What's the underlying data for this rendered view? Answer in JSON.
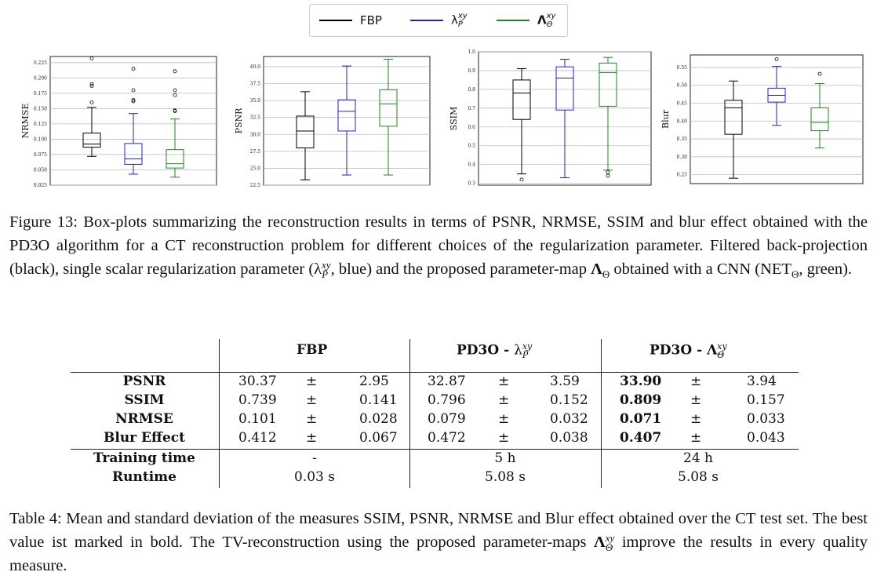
{
  "legend": {
    "items": [
      {
        "label": "FBP",
        "sup": "",
        "sub": "",
        "color": "#000000"
      },
      {
        "label": "λ",
        "sup": "xy",
        "sub": "P̃",
        "color": "#1f1fdd"
      },
      {
        "label": "Λ",
        "sup": "xy",
        "sub": "Θ",
        "color": "#1a8a1a"
      }
    ]
  },
  "chart_data": [
    {
      "type": "box",
      "ylabel": "NRMSE",
      "ylim": [
        0.025,
        0.235
      ],
      "yticks": [
        "0.025",
        "0.050",
        "0.075",
        "0.100",
        "0.125",
        "0.150",
        "0.175",
        "0.200",
        "0.225"
      ],
      "boxes": [
        {
          "color": "#000000",
          "whislo": 0.072,
          "q1": 0.087,
          "med": 0.092,
          "q3": 0.11,
          "whishi": 0.152,
          "fliers": [
            0.16,
            0.187,
            0.19,
            0.232
          ]
        },
        {
          "color": "#1f1fdd",
          "whislo": 0.043,
          "q1": 0.059,
          "med": 0.068,
          "q3": 0.093,
          "whishi": 0.142,
          "fliers": [
            0.162,
            0.164,
            0.18,
            0.215
          ]
        },
        {
          "color": "#1a8a1a",
          "whislo": 0.038,
          "q1": 0.053,
          "med": 0.06,
          "q3": 0.083,
          "whishi": 0.133,
          "fliers": [
            0.146,
            0.147,
            0.172,
            0.18,
            0.211
          ]
        }
      ]
    },
    {
      "type": "box",
      "ylabel": "PSNR",
      "ylim": [
        22.5,
        41.5
      ],
      "yticks": [
        "22.5",
        "25.0",
        "27.5",
        "30.0",
        "32.5",
        "35.0",
        "37.5",
        "40.0"
      ],
      "boxes": [
        {
          "color": "#000000",
          "whislo": 23.3,
          "q1": 28.0,
          "med": 30.5,
          "q3": 32.7,
          "whishi": 36.3,
          "fliers": []
        },
        {
          "color": "#1f1fdd",
          "whislo": 24.0,
          "q1": 30.5,
          "med": 33.4,
          "q3": 35.1,
          "whishi": 40.1,
          "fliers": []
        },
        {
          "color": "#1a8a1a",
          "whislo": 24.0,
          "q1": 31.2,
          "med": 34.5,
          "q3": 36.6,
          "whishi": 41.1,
          "fliers": []
        }
      ]
    },
    {
      "type": "box",
      "ylabel": "SSIM",
      "ylim": [
        0.29,
        1.0
      ],
      "yticks": [
        "0.3",
        "0.4",
        "0.5",
        "0.6",
        "0.7",
        "0.8",
        "0.9",
        "1.0"
      ],
      "boxes": [
        {
          "color": "#000000",
          "whislo": 0.35,
          "q1": 0.64,
          "med": 0.78,
          "q3": 0.85,
          "whishi": 0.91,
          "fliers": [
            0.32
          ]
        },
        {
          "color": "#1f1fdd",
          "whislo": 0.33,
          "q1": 0.69,
          "med": 0.86,
          "q3": 0.92,
          "whishi": 0.96,
          "fliers": []
        },
        {
          "color": "#1a8a1a",
          "whislo": 0.37,
          "q1": 0.71,
          "med": 0.89,
          "q3": 0.94,
          "whishi": 0.97,
          "fliers": [
            0.34,
            0.36
          ]
        }
      ]
    },
    {
      "type": "box",
      "ylabel": "Blur",
      "ylim": [
        0.225,
        0.585
      ],
      "yticks": [
        "0.25",
        "0.30",
        "0.35",
        "0.40",
        "0.45",
        "0.50",
        "0.55"
      ],
      "boxes": [
        {
          "color": "#000000",
          "whislo": 0.24,
          "q1": 0.363,
          "med": 0.437,
          "q3": 0.458,
          "whishi": 0.512,
          "fliers": []
        },
        {
          "color": "#1f1fdd",
          "whislo": 0.388,
          "q1": 0.453,
          "med": 0.472,
          "q3": 0.492,
          "whishi": 0.553,
          "fliers": [
            0.573
          ]
        },
        {
          "color": "#1a8a1a",
          "whislo": 0.325,
          "q1": 0.373,
          "med": 0.396,
          "q3": 0.437,
          "whishi": 0.505,
          "fliers": [
            0.532
          ]
        }
      ]
    }
  ],
  "figure_caption": {
    "label": "Figure 13:",
    "text1": " Box-plots summarizing the reconstruction results in terms of PSNR, NRMSE, SSIM and blur effect obtained with the PD3O algorithm for a CT reconstruction problem for different choices of the regularization parameter. Filtered back-projection (black), single scalar regularization parameter (",
    "lambda": "λ",
    "lambda_sup": "xy",
    "lambda_sub": "P̃",
    "text2": ", blue) and the proposed parameter-map ",
    "Lambda": "Λ",
    "Lambda_sub": "Θ",
    "text3": " obtained with a CNN (NET",
    "net_sub": "Θ",
    "text4": ", green)."
  },
  "table": {
    "col_headers": [
      {
        "text": "FBP",
        "sym": "",
        "sup": "",
        "sub": ""
      },
      {
        "text": "PD3O - ",
        "sym": "λ",
        "sup": "xy",
        "sub": "P̃"
      },
      {
        "text": "PD3O - ",
        "sym": "Λ",
        "sup": "xy",
        "sub": "Θ"
      }
    ],
    "rows": [
      {
        "label": "PSNR",
        "vals": [
          "30.37",
          "±",
          "2.95",
          "32.87",
          "±",
          "3.59",
          "33.90",
          "±",
          "3.94"
        ]
      },
      {
        "label": "SSIM",
        "vals": [
          "0.739",
          "±",
          "0.141",
          "0.796",
          "±",
          "0.152",
          "0.809",
          "±",
          "0.157"
        ]
      },
      {
        "label": "NRMSE",
        "vals": [
          "0.101",
          "±",
          "0.028",
          "0.079",
          "±",
          "0.032",
          "0.071",
          "±",
          "0.033"
        ]
      },
      {
        "label": "Blur Effect",
        "vals": [
          "0.412",
          "±",
          "0.067",
          "0.472",
          "±",
          "0.038",
          "0.407",
          "±",
          "0.043"
        ]
      }
    ],
    "extra_rows": [
      {
        "label": "Training time",
        "vals": [
          "-",
          "5 h",
          "24 h"
        ]
      },
      {
        "label": "Runtime",
        "vals": [
          "0.03 s",
          "5.08 s",
          "5.08 s"
        ]
      }
    ]
  },
  "table_caption": {
    "label": "Table 4:",
    "text1": " Mean and standard deviation of the measures SSIM, PSNR, NRMSE and Blur effect obtained over the CT test set. The best value ist marked in bold. The TV-reconstruction using the proposed parameter-maps ",
    "Lambda": "Λ",
    "Lambda_sup": "xy",
    "Lambda_sub": "Θ",
    "text2": " improve the results in every quality measure."
  }
}
